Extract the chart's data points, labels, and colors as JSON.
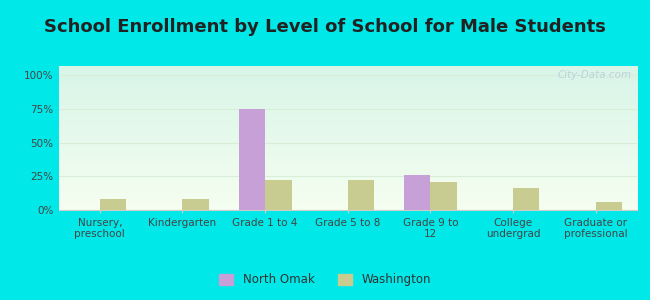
{
  "title": "School Enrollment by Level of School for Male Students",
  "categories": [
    "Nursery,\npreschool",
    "Kindergarten",
    "Grade 1 to 4",
    "Grade 5 to 8",
    "Grade 9 to\n12",
    "College\nundergrad",
    "Graduate or\nprofessional"
  ],
  "north_omak": [
    0,
    0,
    75,
    0,
    26,
    0,
    0
  ],
  "washington": [
    8,
    8,
    22,
    22,
    21,
    16,
    6
  ],
  "north_omak_color": "#c8a0d8",
  "washington_color": "#c8cc90",
  "title_fontsize": 13,
  "tick_fontsize": 7.5,
  "legend_labels": [
    "North Omak",
    "Washington"
  ],
  "yticks": [
    0,
    25,
    50,
    75,
    100
  ],
  "ytick_labels": [
    "0%",
    "25%",
    "50%",
    "75%",
    "100%"
  ],
  "ylim": [
    0,
    107
  ],
  "outer_bg": "#00e8e8",
  "plot_bg_top": "#d8f5e8",
  "plot_bg_bottom": "#f5fef0",
  "bar_width": 0.32,
  "watermark": "City-Data.com",
  "watermark_color": "#b8ccd8",
  "grid_color": "#d8eed8"
}
